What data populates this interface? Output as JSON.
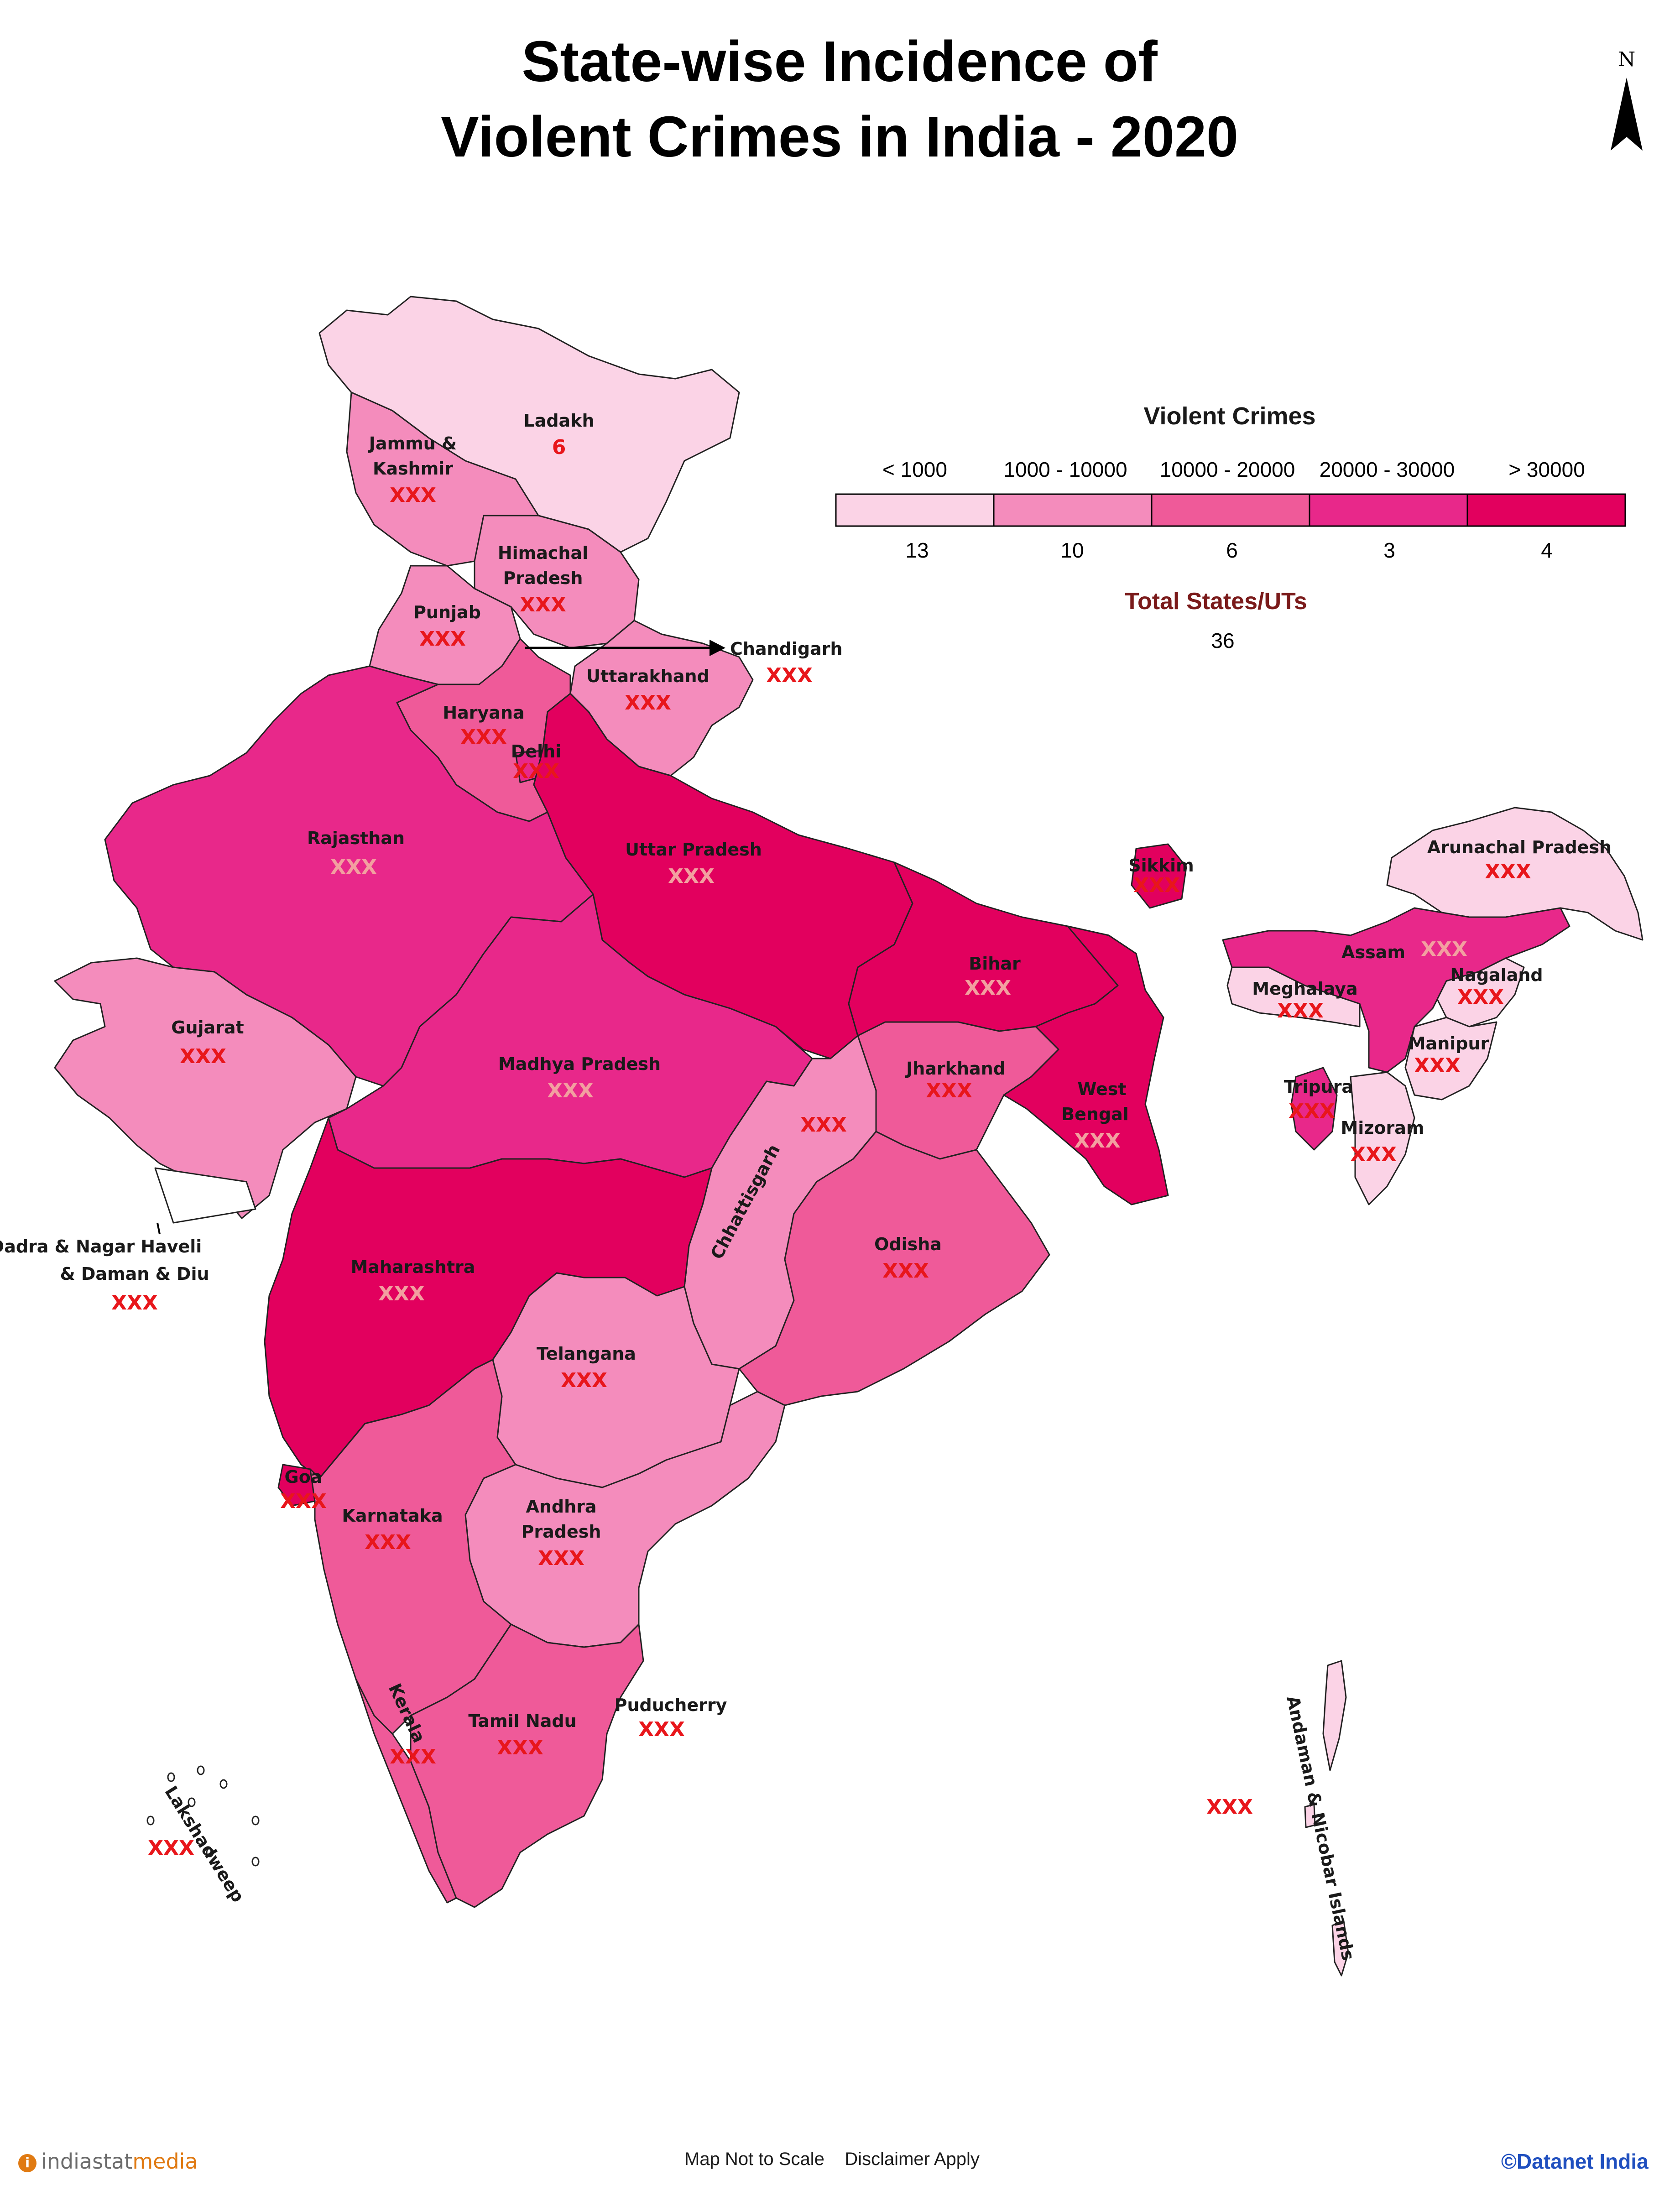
{
  "title": {
    "line1": "State-wise Incidence of",
    "line2": "Violent Crimes in India - 2020"
  },
  "north_label": "N",
  "legend": {
    "title": "Violent Crimes",
    "ranges": [
      "< 1000",
      "1000 - 10000",
      "10000 - 20000",
      "20000 - 30000",
      "> 30000"
    ],
    "counts": [
      "13",
      "10",
      "6",
      "3",
      "4"
    ],
    "colors": [
      "#fbd3e6",
      "#f48cbc",
      "#ef5a99",
      "#e8288a",
      "#e2005e"
    ]
  },
  "total": {
    "label": "Total States/UTs",
    "value": "36"
  },
  "states": {
    "ladakh": {
      "name": "Ladakh",
      "value": "6"
    },
    "jk": {
      "name1": "Jammu &",
      "name2": "Kashmir",
      "value": "XXX"
    },
    "hp": {
      "name1": "Himachal",
      "name2": "Pradesh",
      "value": "XXX"
    },
    "punjab": {
      "name": "Punjab",
      "value": "XXX"
    },
    "chandigarh": {
      "name": "Chandigarh",
      "value": "XXX"
    },
    "uttarakhand": {
      "name": "Uttarakhand",
      "value": "XXX"
    },
    "haryana": {
      "name": "Haryana",
      "value": "XXX"
    },
    "delhi": {
      "name": "Delhi",
      "value": "XXX"
    },
    "rajasthan": {
      "name": "Rajasthan",
      "value": "XXX"
    },
    "up": {
      "name": "Uttar Pradesh",
      "value": "XXX"
    },
    "gujarat": {
      "name": "Gujarat",
      "value": "XXX"
    },
    "mp": {
      "name": "Madhya Pradesh",
      "value": "XXX"
    },
    "bihar": {
      "name": "Bihar",
      "value": "XXX"
    },
    "sikkim": {
      "name": "Sikkim",
      "value": "XXX"
    },
    "arunachal": {
      "name": "Arunachal Pradesh",
      "value": "XXX"
    },
    "assam": {
      "name": "Assam",
      "value": "XXX"
    },
    "nagaland": {
      "name": "Nagaland",
      "value": "XXX"
    },
    "meghalaya": {
      "name": "Meghalaya",
      "value": "XXX"
    },
    "manipur": {
      "name": "Manipur",
      "value": "XXX"
    },
    "tripura": {
      "name": "Tripura",
      "value": "XXX"
    },
    "mizoram": {
      "name": "Mizoram",
      "value": "XXX"
    },
    "jharkhand": {
      "name": "Jharkhand",
      "value": "XXX"
    },
    "wb": {
      "name1": "West",
      "name2": "Bengal",
      "value": "XXX"
    },
    "chhattisgarh": {
      "name": "Chhattisgarh",
      "value": "XXX"
    },
    "odisha": {
      "name": "Odisha",
      "value": "XXX"
    },
    "dnhdd": {
      "name1": "Dadra & Nagar Haveli",
      "name2": "& Daman & Diu",
      "value": "XXX"
    },
    "maharashtra": {
      "name": "Maharashtra",
      "value": "XXX"
    },
    "telangana": {
      "name": "Telangana",
      "value": "XXX"
    },
    "goa": {
      "name": "Goa",
      "value": "XXX"
    },
    "karnataka": {
      "name": "Karnataka",
      "value": "XXX"
    },
    "ap": {
      "name1": "Andhra",
      "name2": "Pradesh",
      "value": "XXX"
    },
    "kerala": {
      "name": "Kerala",
      "value": "XXX"
    },
    "tn": {
      "name": "Tamil Nadu",
      "value": "XXX"
    },
    "puducherry": {
      "name": "Puducherry",
      "value": "XXX"
    },
    "lakshadweep": {
      "name": "Lakshadweep",
      "value": "XXX"
    },
    "andaman": {
      "name": "Andaman & Nicobar Islands",
      "value": "XXX"
    }
  },
  "footer": {
    "brand_left_icon": "i",
    "brand_left_1": "indiastat",
    "brand_left_2": "media",
    "center": "Map Not to Scale    Disclaimer Apply",
    "brand_right": "©Datanet India"
  }
}
